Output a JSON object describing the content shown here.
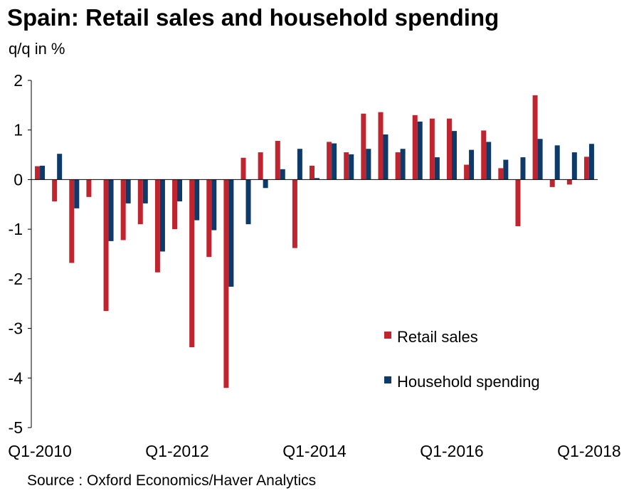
{
  "chart_data": {
    "type": "bar",
    "title": "Spain: Retail sales and household spending",
    "subtitle": "q/q in %",
    "xlabel": "",
    "ylabel": "q/q in %",
    "ylim": [
      -5,
      2
    ],
    "yticks": [
      2,
      1,
      0,
      -1,
      -2,
      -3,
      -4,
      -5
    ],
    "x_tick_labels": [
      "Q1-2010",
      "Q1-2012",
      "Q1-2014",
      "Q1-2016",
      "Q1-2018"
    ],
    "categories": [
      "Q1-2010",
      "Q2-2010",
      "Q3-2010",
      "Q4-2010",
      "Q1-2011",
      "Q2-2011",
      "Q3-2011",
      "Q4-2011",
      "Q1-2012",
      "Q2-2012",
      "Q3-2012",
      "Q4-2012",
      "Q1-2013",
      "Q2-2013",
      "Q3-2013",
      "Q4-2013",
      "Q1-2014",
      "Q2-2014",
      "Q3-2014",
      "Q4-2014",
      "Q1-2015",
      "Q2-2015",
      "Q3-2015",
      "Q4-2015",
      "Q1-2016",
      "Q2-2016",
      "Q3-2016",
      "Q4-2016",
      "Q1-2017",
      "Q2-2017",
      "Q3-2017",
      "Q4-2017",
      "Q1-2018"
    ],
    "series": [
      {
        "name": "Retail sales",
        "color": "#c0242f",
        "values": [
          0.27,
          -0.44,
          -1.68,
          -0.35,
          -2.65,
          -1.22,
          -0.9,
          -1.87,
          -1.0,
          -3.38,
          -1.56,
          -4.2,
          0.44,
          0.55,
          0.78,
          -1.38,
          0.28,
          0.76,
          0.55,
          1.33,
          1.36,
          0.55,
          1.3,
          1.23,
          1.23,
          0.3,
          0.99,
          0.23,
          -0.94,
          1.7,
          -0.15,
          -0.1,
          0.46
        ]
      },
      {
        "name": "Household spending",
        "color": "#0e3a6a",
        "values": [
          0.28,
          0.52,
          -0.58,
          null,
          -1.24,
          -0.48,
          -0.48,
          -1.45,
          -0.44,
          -0.82,
          -1.02,
          -2.16,
          -0.9,
          -0.17,
          0.21,
          0.62,
          0.03,
          0.73,
          0.51,
          0.62,
          0.91,
          0.62,
          1.17,
          0.45,
          0.98,
          0.6,
          0.76,
          0.4,
          0.45,
          0.82,
          0.69,
          0.55,
          0.72
        ]
      }
    ],
    "legend": [
      "Retail sales",
      "Household spending"
    ],
    "legend_position": "bottom-right",
    "grid": false
  },
  "source": "Source : Oxford Economics/Haver Analytics"
}
